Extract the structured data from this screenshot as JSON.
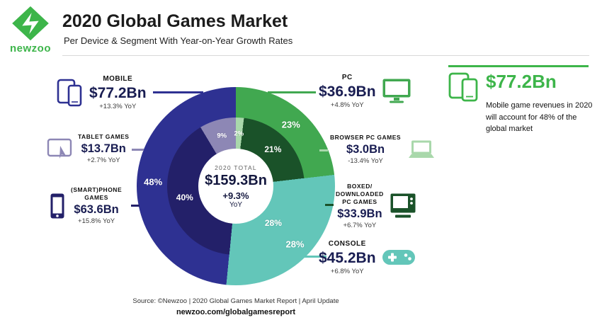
{
  "brand": {
    "logo_text": "newzoo",
    "green": "#3db54a"
  },
  "header": {
    "title": "2020 Global Games Market",
    "subtitle": "Per Device & Segment With Year-on-Year Growth Rates"
  },
  "chart_data": {
    "type": "donut",
    "title": "2020 Global Games Market per Device & Segment with Year-on-Year Growth Rates",
    "unit": "USD Bn",
    "center": {
      "label": "2020 TOTAL",
      "total": "$159.3Bn",
      "growth": "+9.3%",
      "growth_unit": "YoY"
    },
    "outer_ring": {
      "segments": [
        {
          "name": "PC",
          "percent_label": "23%",
          "value_bn": 36.9,
          "yoy": "+4.8%",
          "color": "#41a850"
        },
        {
          "name": "Console",
          "percent_label": "28%",
          "value_bn": 45.2,
          "yoy": "+6.8%",
          "color": "#63c6b9"
        },
        {
          "name": "Mobile",
          "percent_label": "48%",
          "value_bn": 77.2,
          "yoy": "+13.3%",
          "color": "#2e3192"
        }
      ]
    },
    "inner_ring": {
      "segments": [
        {
          "name": "Browser PC Games",
          "percent_label": "2%",
          "value_bn": 3.0,
          "yoy": "-13.4%",
          "color": "#a9d8ab"
        },
        {
          "name": "Boxed/Downloaded PC Games",
          "percent_label": "21%",
          "value_bn": 33.9,
          "yoy": "+6.7%",
          "color": "#1a5229"
        },
        {
          "name": "Console",
          "percent_label": "28%",
          "value_bn": 45.2,
          "yoy": "+6.8%",
          "color": "#63c6b9"
        },
        {
          "name": "(Smart)phone Games",
          "percent_label": "40%",
          "value_bn": 63.6,
          "yoy": "+15.8%",
          "color": "#232069"
        },
        {
          "name": "Tablet Games",
          "percent_label": "9%",
          "value_bn": 13.7,
          "yoy": "+2.7%",
          "color": "#8d87b5"
        }
      ]
    }
  },
  "annotations": {
    "mobile": {
      "label": "MOBILE",
      "value": "$77.2Bn",
      "yoy": "+13.3% YoY"
    },
    "tablet": {
      "label": "TABLET GAMES",
      "value": "$13.7Bn",
      "yoy": "+2.7% YoY"
    },
    "smartphone": {
      "label_line1": "(SMART)PHONE",
      "label_line2": "GAMES",
      "value": "$63.6Bn",
      "yoy": "+15.8% YoY"
    },
    "pc": {
      "label": "PC",
      "value": "$36.9Bn",
      "yoy": "+4.8% YoY"
    },
    "browser": {
      "label": "BROWSER PC GAMES",
      "value": "$3.0Bn",
      "yoy": "-13.4% YoY"
    },
    "boxed": {
      "label_line1": "BOXED/",
      "label_line2": "DOWNLOADED",
      "label_line3": "PC GAMES",
      "value": "$33.9Bn",
      "yoy": "+6.7% YoY"
    },
    "console": {
      "label": "CONSOLE",
      "value": "$45.2Bn",
      "yoy": "+6.8% YoY"
    }
  },
  "callout": {
    "value": "$77.2Bn",
    "text": "Mobile game revenues in 2020 will account for 48% of the global market"
  },
  "footer": {
    "source": "Source: ©Newzoo | 2020 Global Games Market Report | April Update",
    "url": "newzoo.com/globalgamesreport"
  }
}
